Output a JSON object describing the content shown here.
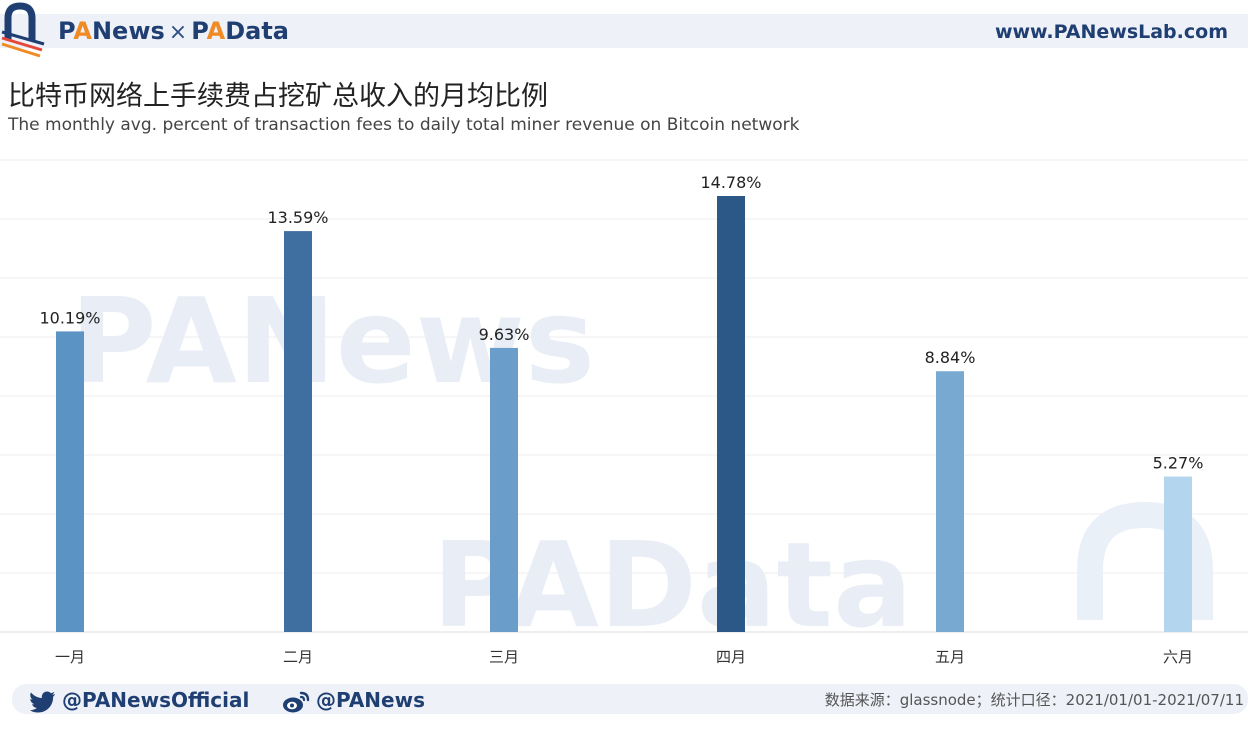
{
  "header": {
    "brand_left_pa": "P",
    "brand_left_a": "A",
    "brand_left_rest": "News",
    "brand_times": "×",
    "brand_right_pa": "P",
    "brand_right_a": "A",
    "brand_right_rest": "Data",
    "site_url": "www.PANewsLab.com"
  },
  "footer": {
    "twitter_handle": "@PANewsOfficial",
    "weibo_handle": "@PANews",
    "source": "数据来源：glassnode；统计口径：2021/01/01-2021/07/11"
  },
  "watermarks": [
    "PANews",
    "PAData"
  ],
  "colors": {
    "accent": "#f08a24",
    "brand": "#1f3f73",
    "bars": [
      "#5b93c4",
      "#3f6ea1",
      "#6a9dc9",
      "#2b5887",
      "#78a9d1",
      "#b3d6ee"
    ]
  },
  "chart_data": {
    "type": "bar",
    "title": "比特币网络上手续费占挖矿总收入的月均比例",
    "subtitle": "The monthly avg. percent of transaction fees to daily total miner revenue on Bitcoin network",
    "categories": [
      "一月",
      "二月",
      "三月",
      "四月",
      "五月",
      "六月"
    ],
    "values": [
      10.19,
      13.59,
      9.63,
      14.78,
      8.84,
      5.27
    ],
    "data_labels": [
      "10.19%",
      "13.59%",
      "9.63%",
      "14.78%",
      "8.84%",
      "5.27%"
    ],
    "ylim": [
      0,
      16
    ],
    "grid": true,
    "legend": "none"
  }
}
